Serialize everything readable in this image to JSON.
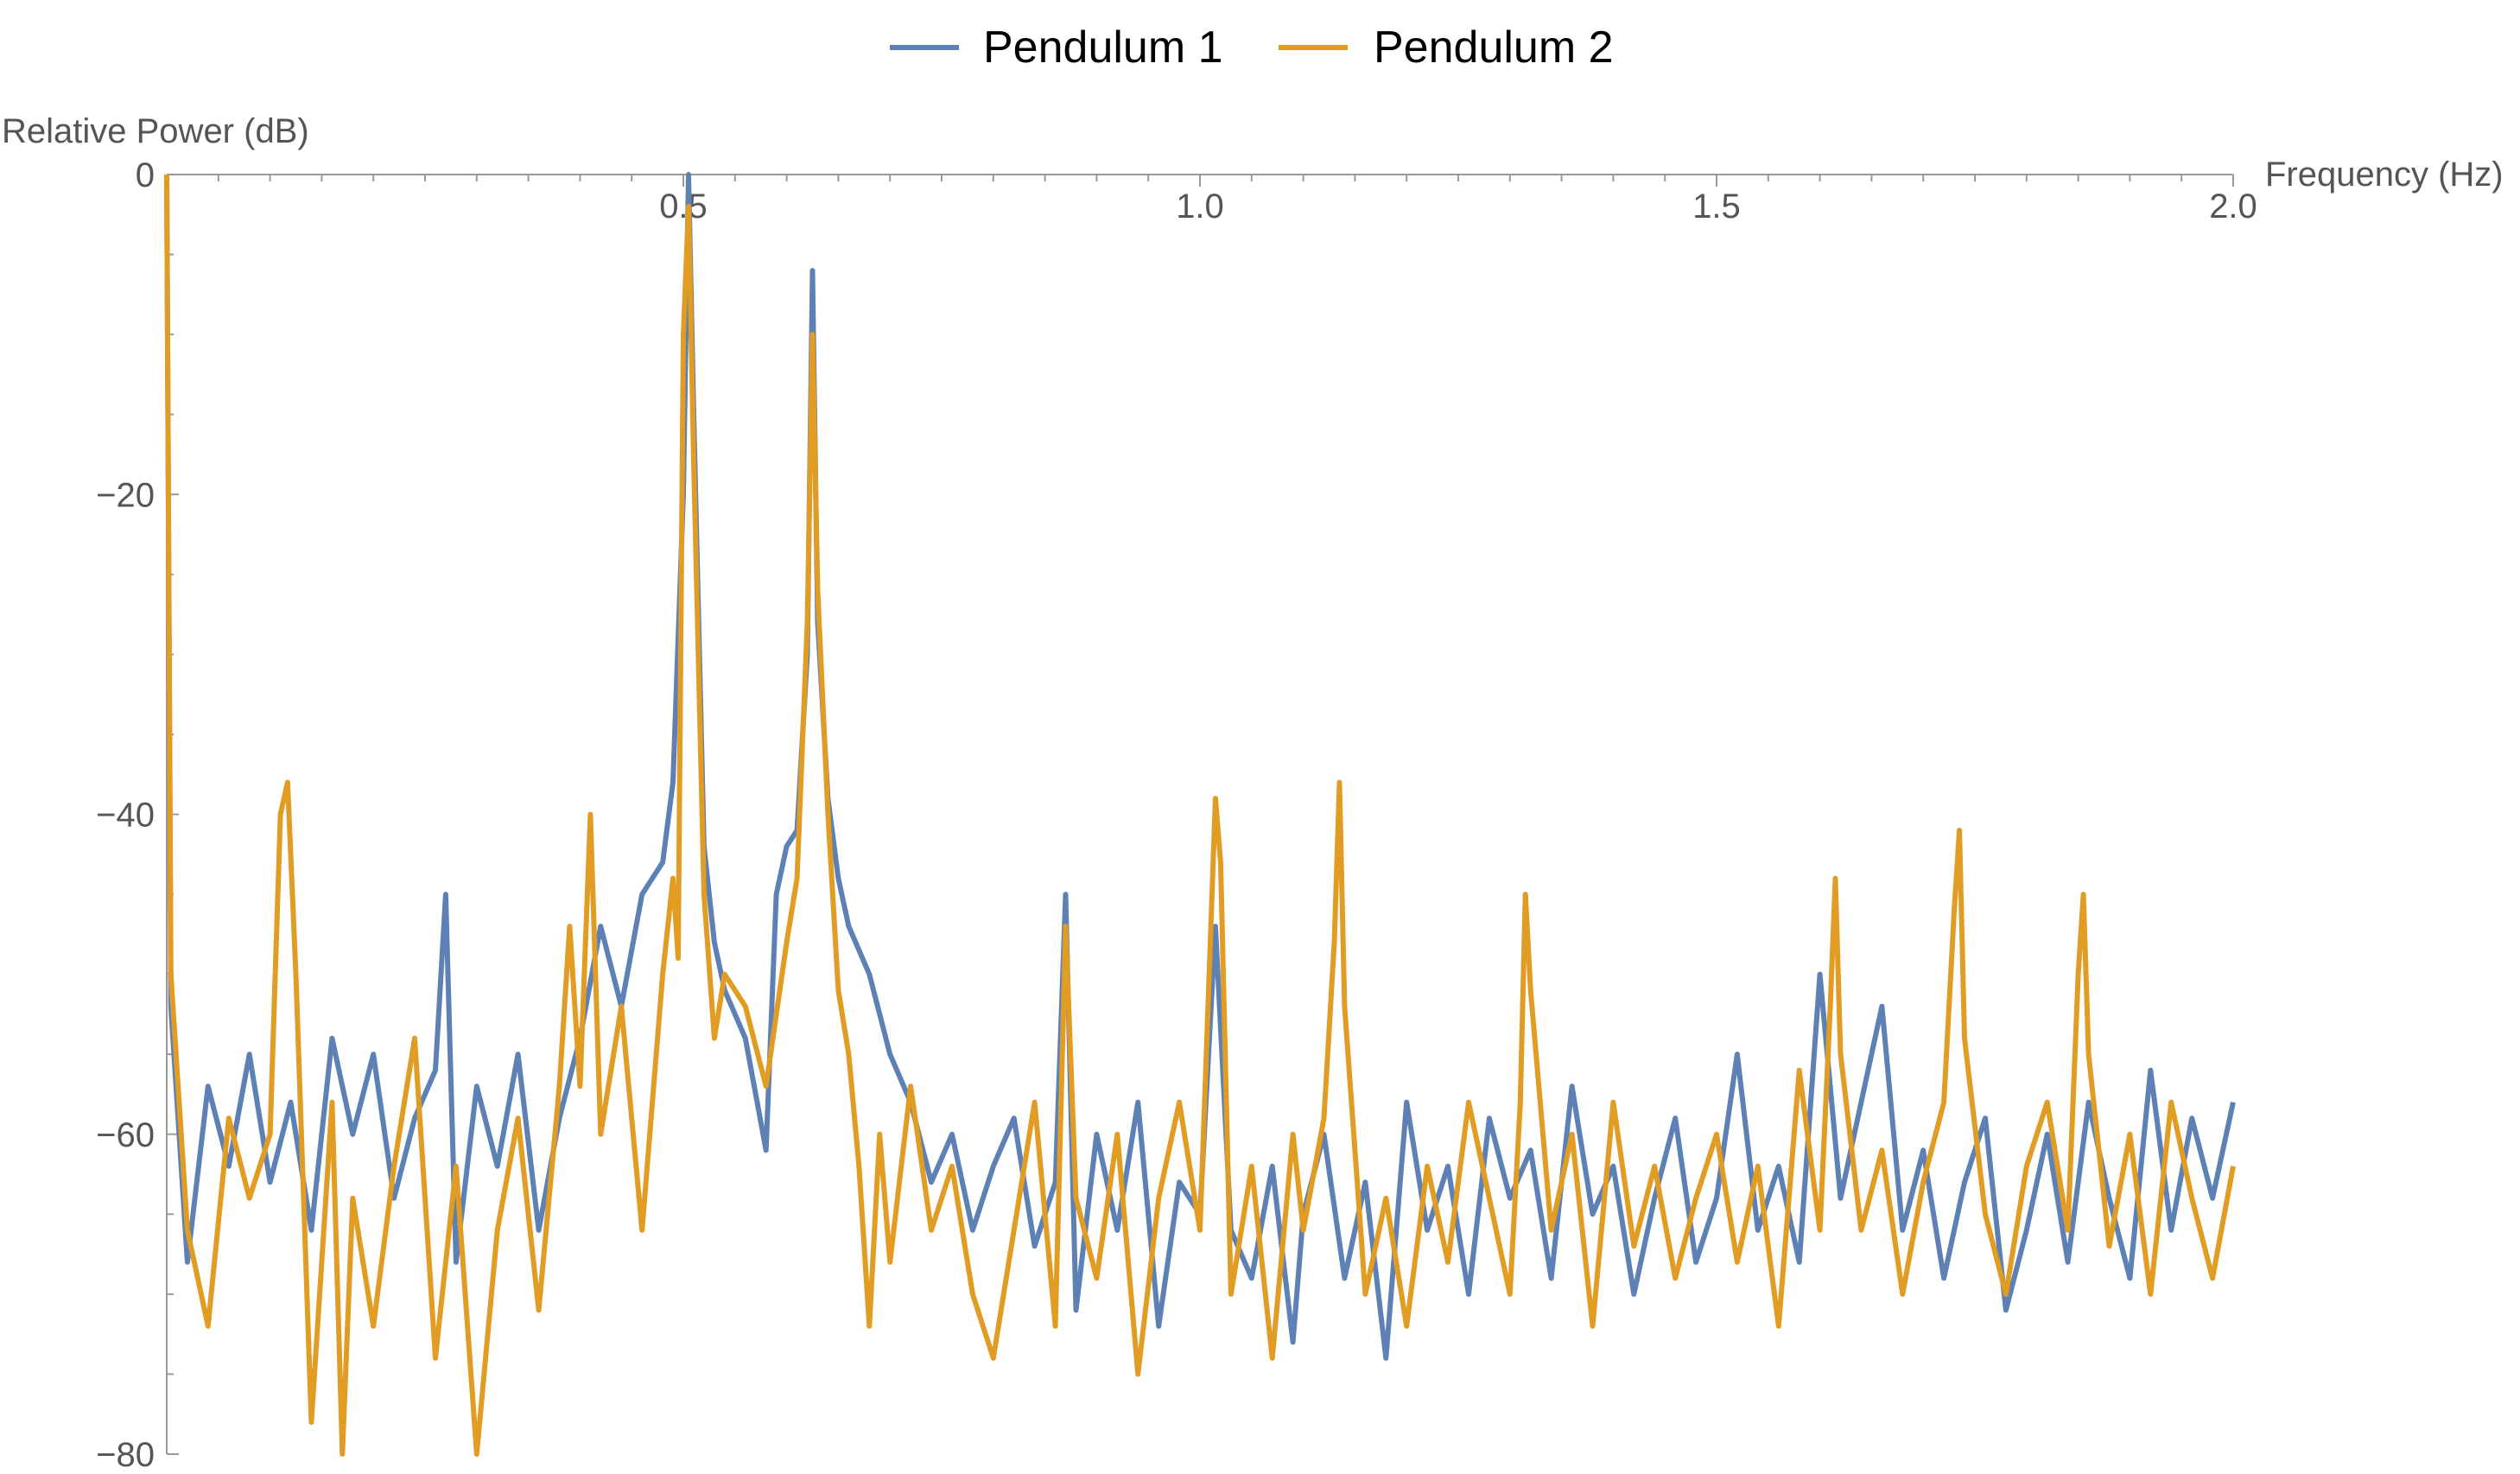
{
  "chart_data": {
    "type": "line",
    "title": "",
    "xlabel": "Frequency (Hz)",
    "ylabel": "Relative Power (dB)",
    "xlim": [
      0,
      2.0
    ],
    "ylim": [
      -80,
      0
    ],
    "x_ticks": [
      {
        "value": 0.5,
        "label": "0.5"
      },
      {
        "value": 1.0,
        "label": "1.0"
      },
      {
        "value": 1.5,
        "label": "1.5"
      },
      {
        "value": 2.0,
        "label": "2.0"
      }
    ],
    "y_ticks": [
      {
        "value": 0,
        "label": "0"
      },
      {
        "value": -20,
        "label": "−20"
      },
      {
        "value": -40,
        "label": "−40"
      },
      {
        "value": -60,
        "label": "−60"
      },
      {
        "value": -80,
        "label": "−80"
      }
    ],
    "legend_position": "top-center",
    "grid": false,
    "series": [
      {
        "name": "Pendulum 1",
        "color": "#5E81B5",
        "points": [
          [
            0.0,
            0
          ],
          [
            0.004,
            -52
          ],
          [
            0.02,
            -68
          ],
          [
            0.04,
            -57
          ],
          [
            0.06,
            -62
          ],
          [
            0.08,
            -55
          ],
          [
            0.1,
            -63
          ],
          [
            0.12,
            -58
          ],
          [
            0.14,
            -66
          ],
          [
            0.16,
            -54
          ],
          [
            0.18,
            -60
          ],
          [
            0.2,
            -55
          ],
          [
            0.22,
            -64
          ],
          [
            0.24,
            -59
          ],
          [
            0.26,
            -56
          ],
          [
            0.27,
            -45
          ],
          [
            0.28,
            -68
          ],
          [
            0.3,
            -57
          ],
          [
            0.32,
            -62
          ],
          [
            0.34,
            -55
          ],
          [
            0.36,
            -66
          ],
          [
            0.38,
            -59
          ],
          [
            0.4,
            -54
          ],
          [
            0.42,
            -47
          ],
          [
            0.44,
            -52
          ],
          [
            0.46,
            -45
          ],
          [
            0.48,
            -43
          ],
          [
            0.49,
            -38
          ],
          [
            0.5,
            -20
          ],
          [
            0.505,
            0
          ],
          [
            0.51,
            -15
          ],
          [
            0.52,
            -42
          ],
          [
            0.53,
            -48
          ],
          [
            0.54,
            -51
          ],
          [
            0.56,
            -54
          ],
          [
            0.58,
            -61
          ],
          [
            0.59,
            -45
          ],
          [
            0.6,
            -42
          ],
          [
            0.61,
            -41
          ],
          [
            0.62,
            -30
          ],
          [
            0.625,
            -6
          ],
          [
            0.63,
            -28
          ],
          [
            0.64,
            -39
          ],
          [
            0.65,
            -44
          ],
          [
            0.66,
            -47
          ],
          [
            0.68,
            -50
          ],
          [
            0.7,
            -55
          ],
          [
            0.72,
            -58
          ],
          [
            0.74,
            -63
          ],
          [
            0.76,
            -60
          ],
          [
            0.78,
            -66
          ],
          [
            0.8,
            -62
          ],
          [
            0.82,
            -59
          ],
          [
            0.84,
            -67
          ],
          [
            0.86,
            -63
          ],
          [
            0.87,
            -45
          ],
          [
            0.88,
            -71
          ],
          [
            0.9,
            -60
          ],
          [
            0.92,
            -66
          ],
          [
            0.94,
            -58
          ],
          [
            0.96,
            -72
          ],
          [
            0.98,
            -63
          ],
          [
            1.0,
            -65
          ],
          [
            1.015,
            -47
          ],
          [
            1.03,
            -66
          ],
          [
            1.05,
            -69
          ],
          [
            1.07,
            -62
          ],
          [
            1.09,
            -73
          ],
          [
            1.1,
            -65
          ],
          [
            1.12,
            -60
          ],
          [
            1.14,
            -69
          ],
          [
            1.16,
            -63
          ],
          [
            1.18,
            -74
          ],
          [
            1.2,
            -58
          ],
          [
            1.22,
            -66
          ],
          [
            1.24,
            -62
          ],
          [
            1.26,
            -70
          ],
          [
            1.28,
            -59
          ],
          [
            1.3,
            -64
          ],
          [
            1.32,
            -61
          ],
          [
            1.34,
            -69
          ],
          [
            1.36,
            -57
          ],
          [
            1.38,
            -65
          ],
          [
            1.4,
            -62
          ],
          [
            1.42,
            -70
          ],
          [
            1.44,
            -64
          ],
          [
            1.46,
            -59
          ],
          [
            1.48,
            -68
          ],
          [
            1.5,
            -64
          ],
          [
            1.52,
            -55
          ],
          [
            1.54,
            -66
          ],
          [
            1.56,
            -62
          ],
          [
            1.58,
            -68
          ],
          [
            1.6,
            -50
          ],
          [
            1.62,
            -64
          ],
          [
            1.64,
            -58
          ],
          [
            1.66,
            -52
          ],
          [
            1.68,
            -66
          ],
          [
            1.7,
            -61
          ],
          [
            1.72,
            -69
          ],
          [
            1.74,
            -63
          ],
          [
            1.76,
            -59
          ],
          [
            1.78,
            -71
          ],
          [
            1.8,
            -66
          ],
          [
            1.82,
            -60
          ],
          [
            1.84,
            -68
          ],
          [
            1.86,
            -58
          ],
          [
            1.88,
            -64
          ],
          [
            1.9,
            -69
          ],
          [
            1.92,
            -56
          ],
          [
            1.94,
            -66
          ],
          [
            1.96,
            -59
          ],
          [
            1.98,
            -64
          ],
          [
            2.0,
            -58
          ]
        ]
      },
      {
        "name": "Pendulum 2",
        "color": "#E19C24",
        "points": [
          [
            0.0,
            0
          ],
          [
            0.004,
            -50
          ],
          [
            0.02,
            -66
          ],
          [
            0.04,
            -72
          ],
          [
            0.06,
            -59
          ],
          [
            0.08,
            -64
          ],
          [
            0.1,
            -60
          ],
          [
            0.11,
            -40
          ],
          [
            0.117,
            -38
          ],
          [
            0.125,
            -50
          ],
          [
            0.14,
            -78
          ],
          [
            0.16,
            -58
          ],
          [
            0.17,
            -80
          ],
          [
            0.18,
            -64
          ],
          [
            0.2,
            -72
          ],
          [
            0.22,
            -62
          ],
          [
            0.24,
            -54
          ],
          [
            0.26,
            -74
          ],
          [
            0.28,
            -62
          ],
          [
            0.3,
            -80
          ],
          [
            0.32,
            -66
          ],
          [
            0.34,
            -59
          ],
          [
            0.36,
            -71
          ],
          [
            0.38,
            -57
          ],
          [
            0.39,
            -47
          ],
          [
            0.4,
            -57
          ],
          [
            0.41,
            -40
          ],
          [
            0.42,
            -60
          ],
          [
            0.44,
            -52
          ],
          [
            0.46,
            -66
          ],
          [
            0.48,
            -50
          ],
          [
            0.49,
            -44
          ],
          [
            0.495,
            -49
          ],
          [
            0.5,
            -10
          ],
          [
            0.505,
            -2
          ],
          [
            0.51,
            -18
          ],
          [
            0.52,
            -45
          ],
          [
            0.53,
            -54
          ],
          [
            0.54,
            -50
          ],
          [
            0.56,
            -52
          ],
          [
            0.58,
            -57
          ],
          [
            0.6,
            -48
          ],
          [
            0.61,
            -44
          ],
          [
            0.62,
            -28
          ],
          [
            0.625,
            -10
          ],
          [
            0.63,
            -26
          ],
          [
            0.64,
            -40
          ],
          [
            0.65,
            -51
          ],
          [
            0.66,
            -55
          ],
          [
            0.67,
            -62
          ],
          [
            0.68,
            -72
          ],
          [
            0.69,
            -60
          ],
          [
            0.7,
            -68
          ],
          [
            0.72,
            -57
          ],
          [
            0.74,
            -66
          ],
          [
            0.76,
            -62
          ],
          [
            0.78,
            -70
          ],
          [
            0.8,
            -74
          ],
          [
            0.82,
            -66
          ],
          [
            0.84,
            -58
          ],
          [
            0.86,
            -72
          ],
          [
            0.87,
            -47
          ],
          [
            0.88,
            -64
          ],
          [
            0.9,
            -69
          ],
          [
            0.92,
            -60
          ],
          [
            0.94,
            -75
          ],
          [
            0.96,
            -64
          ],
          [
            0.98,
            -58
          ],
          [
            1.0,
            -66
          ],
          [
            1.01,
            -48
          ],
          [
            1.015,
            -39
          ],
          [
            1.02,
            -43
          ],
          [
            1.03,
            -70
          ],
          [
            1.05,
            -62
          ],
          [
            1.07,
            -74
          ],
          [
            1.09,
            -60
          ],
          [
            1.1,
            -66
          ],
          [
            1.12,
            -59
          ],
          [
            1.13,
            -48
          ],
          [
            1.135,
            -38
          ],
          [
            1.14,
            -52
          ],
          [
            1.16,
            -70
          ],
          [
            1.18,
            -64
          ],
          [
            1.2,
            -72
          ],
          [
            1.22,
            -62
          ],
          [
            1.24,
            -68
          ],
          [
            1.26,
            -58
          ],
          [
            1.28,
            -64
          ],
          [
            1.3,
            -70
          ],
          [
            1.31,
            -58
          ],
          [
            1.315,
            -45
          ],
          [
            1.32,
            -51
          ],
          [
            1.34,
            -66
          ],
          [
            1.36,
            -60
          ],
          [
            1.38,
            -72
          ],
          [
            1.4,
            -58
          ],
          [
            1.42,
            -67
          ],
          [
            1.44,
            -62
          ],
          [
            1.46,
            -69
          ],
          [
            1.48,
            -64
          ],
          [
            1.5,
            -60
          ],
          [
            1.52,
            -68
          ],
          [
            1.54,
            -62
          ],
          [
            1.56,
            -72
          ],
          [
            1.58,
            -56
          ],
          [
            1.6,
            -66
          ],
          [
            1.61,
            -52
          ],
          [
            1.615,
            -44
          ],
          [
            1.62,
            -55
          ],
          [
            1.64,
            -66
          ],
          [
            1.66,
            -61
          ],
          [
            1.68,
            -70
          ],
          [
            1.7,
            -63
          ],
          [
            1.72,
            -58
          ],
          [
            1.73,
            -46
          ],
          [
            1.735,
            -41
          ],
          [
            1.74,
            -54
          ],
          [
            1.76,
            -65
          ],
          [
            1.78,
            -70
          ],
          [
            1.8,
            -62
          ],
          [
            1.82,
            -58
          ],
          [
            1.84,
            -66
          ],
          [
            1.85,
            -50
          ],
          [
            1.855,
            -45
          ],
          [
            1.86,
            -55
          ],
          [
            1.88,
            -67
          ],
          [
            1.9,
            -60
          ],
          [
            1.92,
            -70
          ],
          [
            1.94,
            -58
          ],
          [
            1.96,
            -64
          ],
          [
            1.98,
            -69
          ],
          [
            2.0,
            -62
          ]
        ]
      }
    ]
  }
}
